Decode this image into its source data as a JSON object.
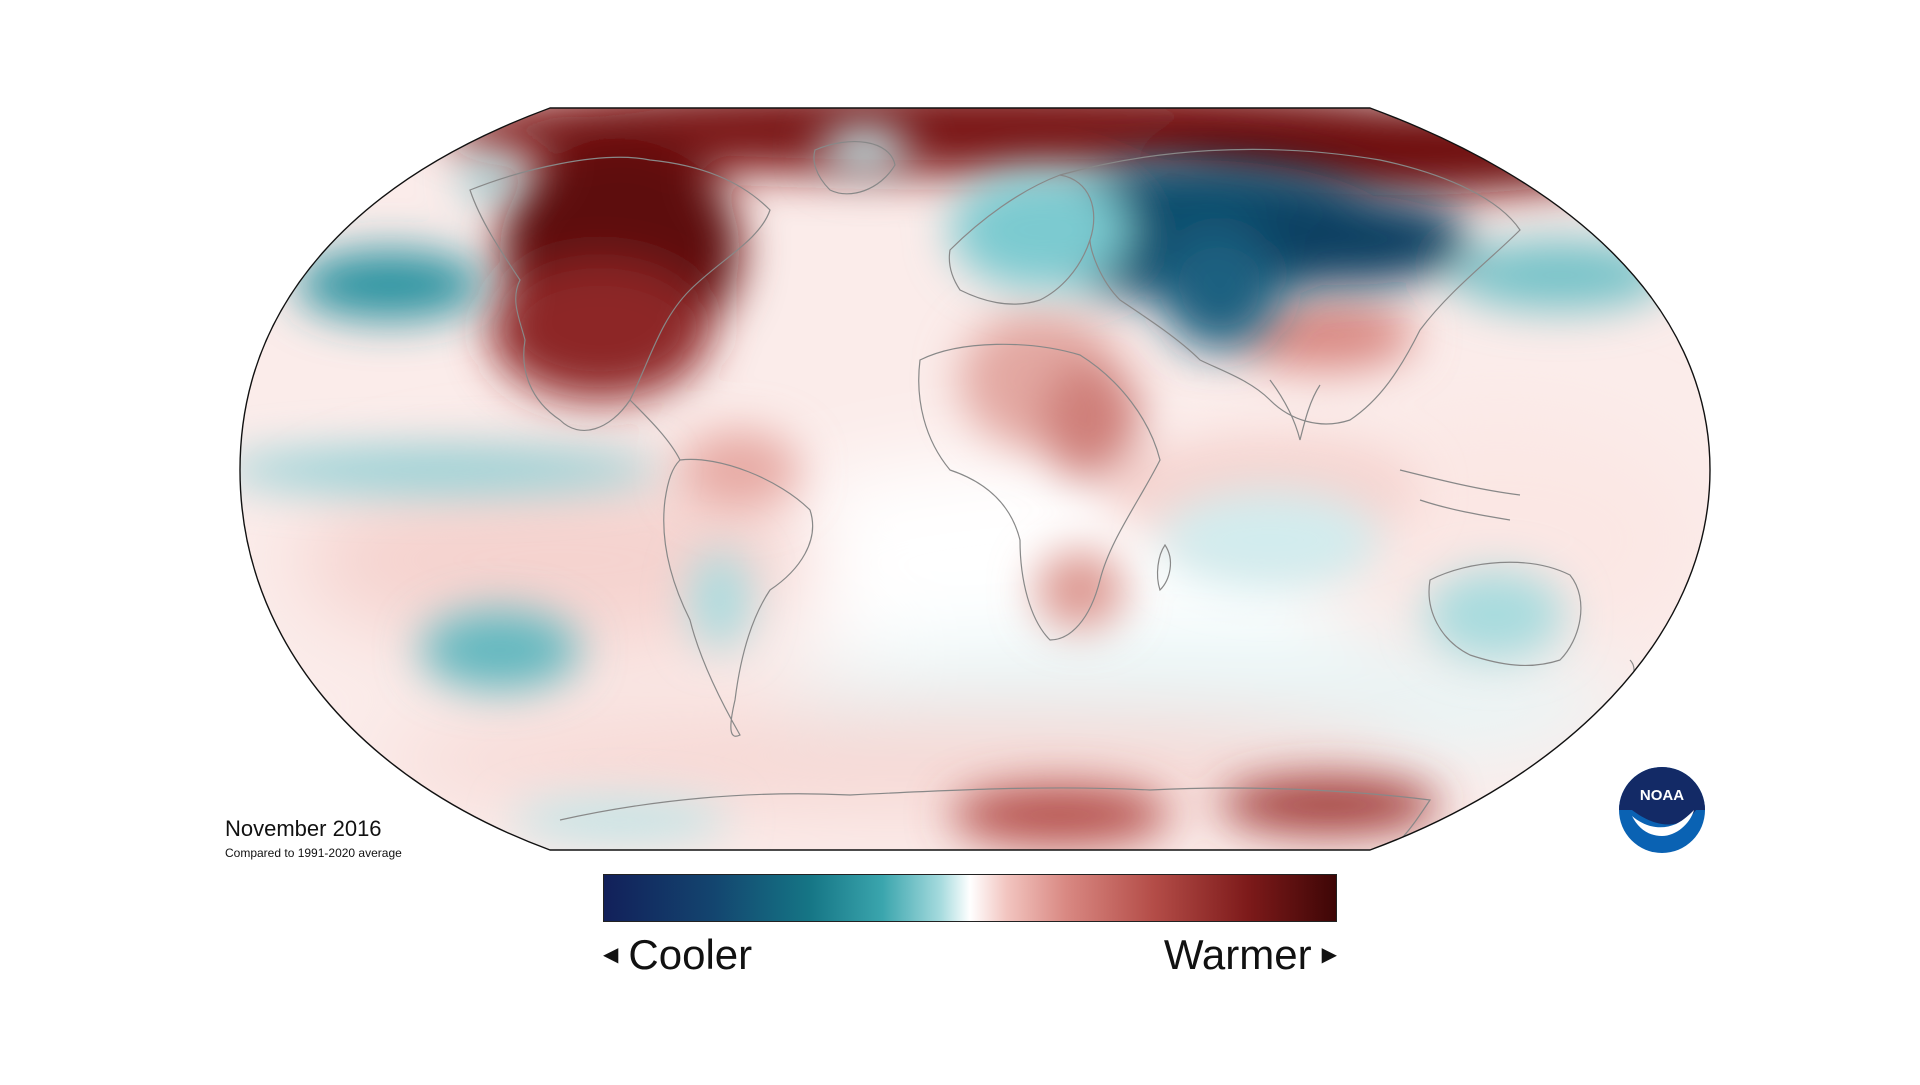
{
  "title": "November 2016",
  "subtitle": "Compared to 1991-2020 average",
  "legend": {
    "low_label": "Cooler",
    "high_label": "Warmer",
    "low_arrow": "◀",
    "high_arrow": "▶"
  },
  "logo": {
    "text": "NOAA",
    "icon": "noaa-logo"
  },
  "colors": {
    "cold_extreme": "#12205a",
    "cold": "#157585",
    "neutral": "#ffffff",
    "warm": "#b44d48",
    "warm_extreme": "#3e0606",
    "noaa_blue": "#0a62b3",
    "noaa_navy": "#132a66"
  },
  "anomaly_regions": [
    {
      "region": "Arctic / northern Canada",
      "anomaly": "warmer",
      "intensity": "strong"
    },
    {
      "region": "Central and northern North America",
      "anomaly": "warmer",
      "intensity": "strong"
    },
    {
      "region": "Northern Russia coast",
      "anomaly": "warmer",
      "intensity": "strong"
    },
    {
      "region": "Siberia / Central Asia",
      "anomaly": "cooler",
      "intensity": "strong"
    },
    {
      "region": "North Pacific",
      "anomaly": "cooler",
      "intensity": "moderate"
    },
    {
      "region": "Equatorial Pacific",
      "anomaly": "cooler",
      "intensity": "weak"
    },
    {
      "region": "South Pacific",
      "anomaly": "cooler",
      "intensity": "moderate"
    },
    {
      "region": "Central Africa",
      "anomaly": "warmer",
      "intensity": "moderate"
    },
    {
      "region": "Antarctica coast",
      "anomaly": "warmer",
      "intensity": "moderate"
    },
    {
      "region": "Australia",
      "anomaly": "cooler",
      "intensity": "weak"
    }
  ]
}
